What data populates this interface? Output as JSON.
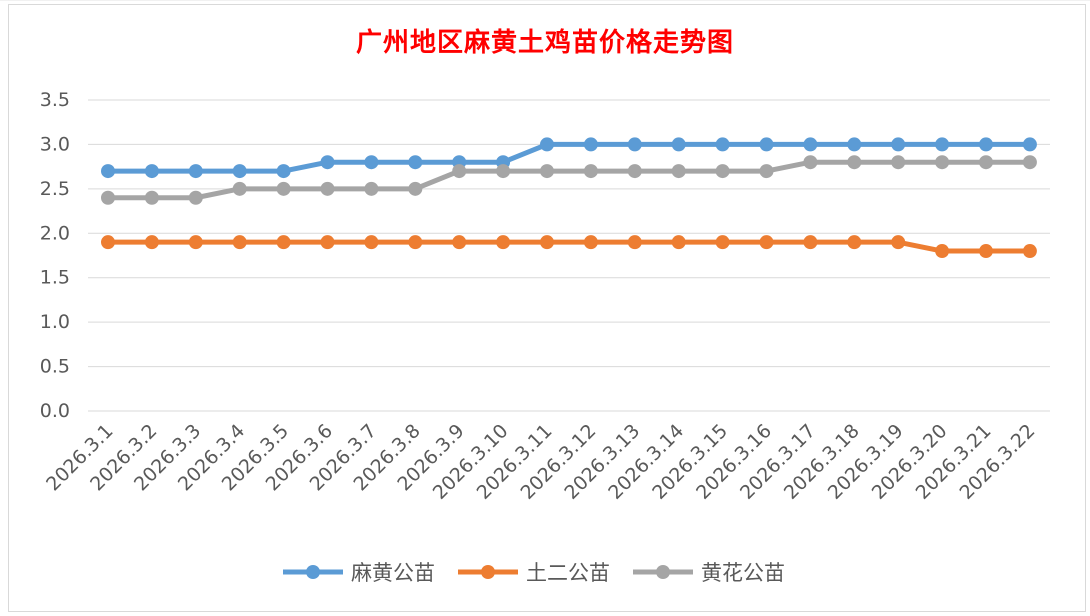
{
  "chart_data": {
    "type": "line",
    "title": "广州地区麻黄土鸡苗价格走势图",
    "xlabel": "",
    "ylabel": "",
    "ylim": [
      0,
      3.5
    ],
    "yticks": [
      "0.0",
      "0.5",
      "1.0",
      "1.5",
      "2.0",
      "2.5",
      "3.0",
      "3.5"
    ],
    "categories": [
      "2026.3.1",
      "2026.3.2",
      "2026.3.3",
      "2026.3.4",
      "2026.3.5",
      "2026.3.6",
      "2026.3.7",
      "2026.3.8",
      "2026.3.9",
      "2026.3.10",
      "2026.3.11",
      "2026.3.12",
      "2026.3.13",
      "2026.3.14",
      "2026.3.15",
      "2026.3.16",
      "2026.3.17",
      "2026.3.18",
      "2026.3.19",
      "2026.3.20",
      "2026.3.21",
      "2026.3.22"
    ],
    "series": [
      {
        "name": "麻黄公苗",
        "color": "#5b9bd5",
        "values": [
          2.7,
          2.7,
          2.7,
          2.7,
          2.7,
          2.8,
          2.8,
          2.8,
          2.8,
          2.8,
          3.0,
          3.0,
          3.0,
          3.0,
          3.0,
          3.0,
          3.0,
          3.0,
          3.0,
          3.0,
          3.0,
          3.0
        ]
      },
      {
        "name": "土二公苗",
        "color": "#ed7d31",
        "values": [
          1.9,
          1.9,
          1.9,
          1.9,
          1.9,
          1.9,
          1.9,
          1.9,
          1.9,
          1.9,
          1.9,
          1.9,
          1.9,
          1.9,
          1.9,
          1.9,
          1.9,
          1.9,
          1.9,
          1.8,
          1.8,
          1.8
        ]
      },
      {
        "name": "黄花公苗",
        "color": "#a5a5a5",
        "values": [
          2.4,
          2.4,
          2.4,
          2.5,
          2.5,
          2.5,
          2.5,
          2.5,
          2.7,
          2.7,
          2.7,
          2.7,
          2.7,
          2.7,
          2.7,
          2.7,
          2.8,
          2.8,
          2.8,
          2.8,
          2.8,
          2.8
        ]
      }
    ],
    "grid": true,
    "legend": "bottom"
  }
}
